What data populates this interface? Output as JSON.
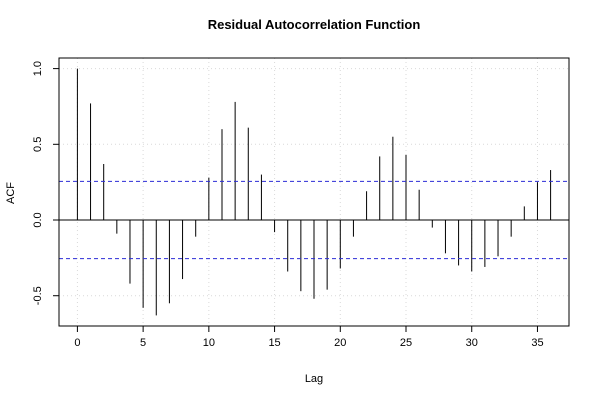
{
  "chart_data": {
    "type": "bar",
    "title": "Residual Autocorrelation Function",
    "xlabel": "Lag",
    "ylabel": "ACF",
    "xlim": [
      -1.4,
      37.4
    ],
    "ylim": [
      -0.7,
      1.07
    ],
    "x_ticks": [
      0,
      5,
      10,
      15,
      20,
      25,
      30,
      35
    ],
    "y_ticks": [
      -0.5,
      0.0,
      0.5,
      1.0
    ],
    "y_tick_labels": [
      "-0.5",
      "0.0",
      "0.5",
      "1.0"
    ],
    "grid": true,
    "confidence_band": 0.255,
    "lags": [
      0,
      1,
      2,
      3,
      4,
      5,
      6,
      7,
      8,
      9,
      10,
      11,
      12,
      13,
      14,
      15,
      16,
      17,
      18,
      19,
      20,
      21,
      22,
      23,
      24,
      25,
      26,
      27,
      28,
      29,
      30,
      31,
      32,
      33,
      34,
      35,
      36
    ],
    "values": [
      1.0,
      0.77,
      0.37,
      -0.09,
      -0.42,
      -0.58,
      -0.63,
      -0.55,
      -0.39,
      -0.11,
      0.28,
      0.6,
      0.78,
      0.61,
      0.3,
      -0.08,
      -0.34,
      -0.47,
      -0.52,
      -0.46,
      -0.32,
      -0.11,
      0.19,
      0.42,
      0.55,
      0.43,
      0.2,
      -0.05,
      -0.22,
      -0.3,
      -0.34,
      -0.31,
      -0.24,
      -0.11,
      0.09,
      0.25,
      0.33
    ],
    "colors": {
      "bars": "#000000",
      "confidence": "#2d2dd6",
      "grid": "#d9d9d9"
    }
  }
}
